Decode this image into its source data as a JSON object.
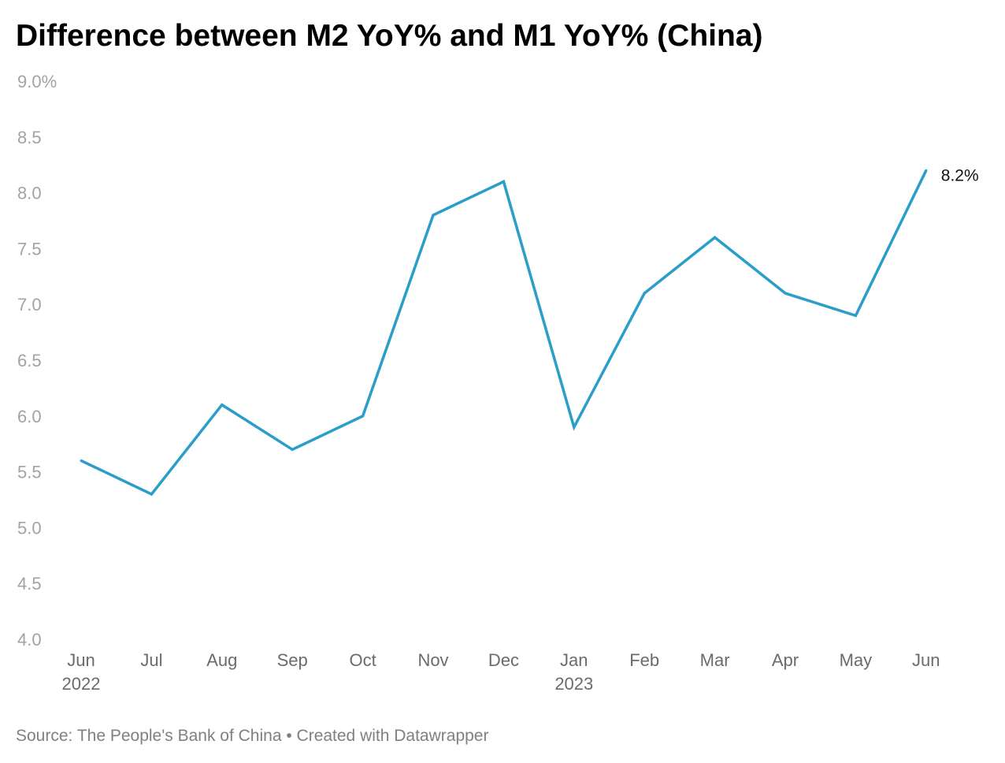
{
  "title": "Difference between M2 YoY% and M1 YoY% (China)",
  "footer": {
    "source": "Source: The People's Bank of China",
    "separator": " • ",
    "credit": "Created with Datawrapper"
  },
  "colors": {
    "line": "#2a9ec9",
    "ytick": "#a3a3a3",
    "xtick": "#6b6b6b",
    "title": "#000000",
    "source": "#808080"
  },
  "chart_data": {
    "type": "line",
    "title": "Difference between M2 YoY% and M1 YoY% (China)",
    "xlabel": "",
    "ylabel": "",
    "categories": [
      "Jun",
      "Jul",
      "Aug",
      "Sep",
      "Oct",
      "Nov",
      "Dec",
      "Jan",
      "Feb",
      "Mar",
      "Apr",
      "May",
      "Jun"
    ],
    "year_labels": [
      "2022",
      "",
      "",
      "",
      "",
      "",
      "",
      "2023",
      "",
      "",
      "",
      "",
      ""
    ],
    "series": [
      {
        "values": [
          5.6,
          5.3,
          6.1,
          5.7,
          6.0,
          7.8,
          8.1,
          5.9,
          7.1,
          7.6,
          7.1,
          6.9,
          8.2
        ],
        "end_label": "8.2%"
      }
    ],
    "yticks": [
      "4.0",
      "4.5",
      "5.0",
      "5.5",
      "6.0",
      "6.5",
      "7.0",
      "7.5",
      "8.0",
      "8.5",
      "9.0%"
    ],
    "ytick_values": [
      4.0,
      4.5,
      5.0,
      5.5,
      6.0,
      6.5,
      7.0,
      7.5,
      8.0,
      8.5,
      9.0
    ],
    "ylim": [
      4.0,
      9.0
    ],
    "grid": false,
    "legend": "none"
  }
}
